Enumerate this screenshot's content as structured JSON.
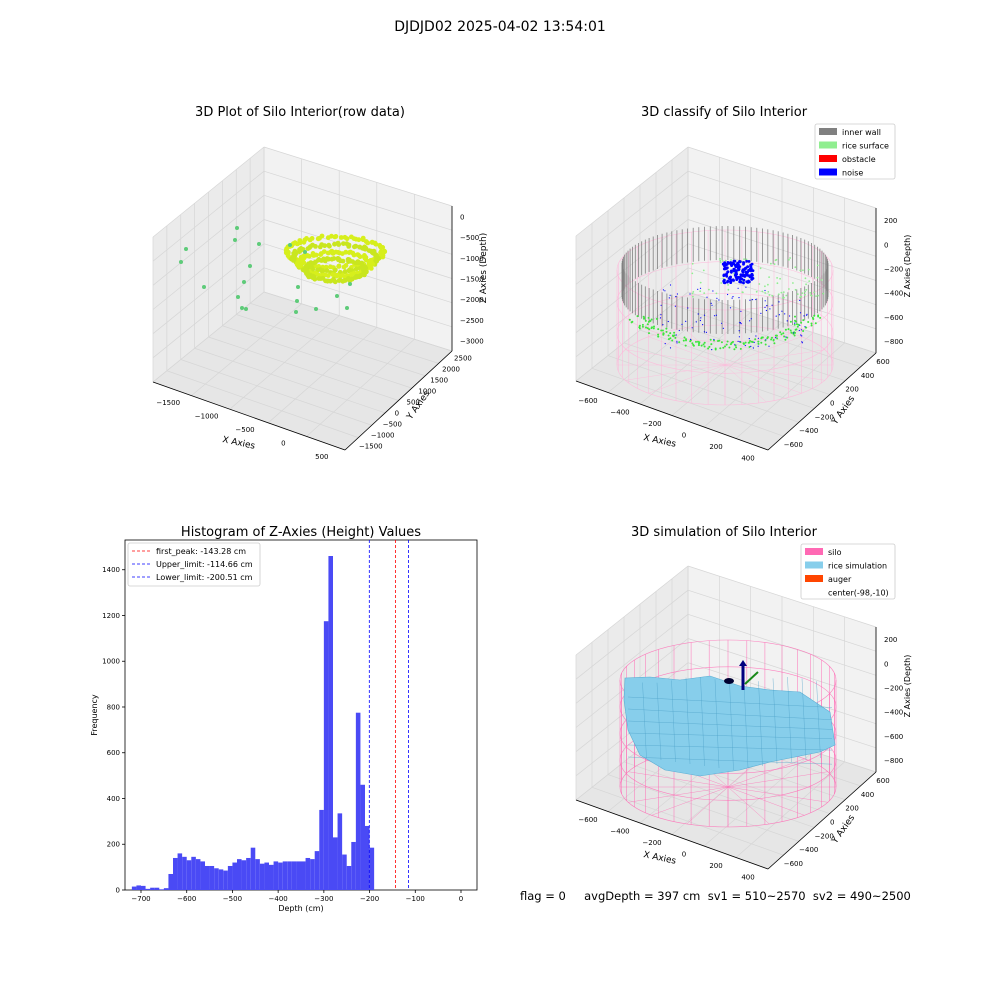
{
  "figure": {
    "suptitle": "DJDJD02 2025-04-02 13:54:01",
    "footer": "flag = 0     avgDepth = 397 cm  sv1 = 510~2570  sv2 = 490~2500"
  },
  "colors": {
    "histogram_bar": "#4a4af5",
    "first_peak_line": "#ff0000",
    "limit_line": "#0000ff",
    "inner_wall": "#808080",
    "rice_surface": "#90ee90",
    "obstacle": "#ff0000",
    "noise": "#0000ff",
    "silo": "#ff69b4",
    "rice_simulation": "#87ceeb",
    "auger": "#ff4500",
    "raw_points_high": "#d7ef1c",
    "raw_points_mid": "#5ecb79",
    "pane": "#f2f2f2",
    "grid": "#d6d6d6"
  },
  "chart_data": [
    {
      "type": "scatter",
      "title": "3D Plot of Silo Interior(row data)",
      "xlabel": "X Axies",
      "ylabel": "Y Axies",
      "zlabel": "Z Axies (Depth)",
      "x_ticks": [
        "−1500",
        "−1000",
        "−500",
        "0",
        "500"
      ],
      "y_ticks": [
        "−1500",
        "−1000",
        "−500",
        "0",
        "500",
        "1000",
        "1500",
        "2000",
        "2500"
      ],
      "z_ticks": [
        "0",
        "−500",
        "−1000",
        "−1500",
        "−2000",
        "−2500",
        "−3000"
      ],
      "grid": true
    },
    {
      "type": "scatter",
      "title": "3D classify of Silo Interior",
      "xlabel": "X Axies",
      "ylabel": "Y Axies",
      "zlabel": "Z Axies (Depth)",
      "x_ticks": [
        "−600",
        "−400",
        "−200",
        "0",
        "200",
        "400"
      ],
      "y_ticks": [
        "−600",
        "−400",
        "−200",
        "0",
        "200",
        "400",
        "600"
      ],
      "z_ticks": [
        "200",
        "0",
        "−200",
        "−400",
        "−600",
        "−800"
      ],
      "legend": [
        "inner wall",
        "rice surface",
        "obstacle",
        "noise"
      ],
      "legend_placement": "top-right",
      "grid": true
    },
    {
      "type": "bar",
      "title": "Histogram of Z-Axies (Height) Values",
      "xlabel": "Depth (cm)",
      "ylabel": "Frequency",
      "bin_width": 10,
      "bin_start": -720,
      "values": [
        15,
        20,
        18,
        5,
        10,
        10,
        3,
        8,
        70,
        140,
        160,
        145,
        130,
        145,
        135,
        125,
        105,
        105,
        95,
        90,
        85,
        105,
        120,
        135,
        130,
        140,
        185,
        135,
        115,
        120,
        110,
        125,
        120,
        125,
        125,
        125,
        125,
        125,
        140,
        135,
        170,
        350,
        1175,
        1460,
        230,
        335,
        155,
        105,
        210,
        775,
        460,
        280,
        185
      ],
      "xlim": [
        -735,
        35
      ],
      "ylim": [
        0,
        1530
      ],
      "x_ticks": [
        "−700",
        "−600",
        "−500",
        "−400",
        "−300",
        "−200",
        "−100",
        "0"
      ],
      "y_ticks": [
        "0",
        "200",
        "400",
        "600",
        "800",
        "1000",
        "1200",
        "1400"
      ],
      "first_peak": -143.28,
      "upper_limit": -114.66,
      "lower_limit": -200.51,
      "legend": [
        "first_peak: -143.28 cm",
        "Upper_limit: -114.66 cm",
        "Lower_limit: -200.51 cm"
      ],
      "legend_placement": "top-left",
      "grid": false
    },
    {
      "type": "area",
      "title": "3D simulation of Silo Interior",
      "xlabel": "X Axies",
      "ylabel": "Y Axies",
      "zlabel": "Z Axies (Depth)",
      "x_ticks": [
        "−600",
        "−400",
        "−200",
        "0",
        "200",
        "400"
      ],
      "y_ticks": [
        "−600",
        "−400",
        "−200",
        "0",
        "200",
        "400",
        "600"
      ],
      "z_ticks": [
        "200",
        "0",
        "−200",
        "−400",
        "−600",
        "−800"
      ],
      "legend": [
        "silo",
        "rice simulation",
        "auger",
        "center(-98,-10)"
      ],
      "legend_placement": "top-right",
      "grid": true
    }
  ]
}
